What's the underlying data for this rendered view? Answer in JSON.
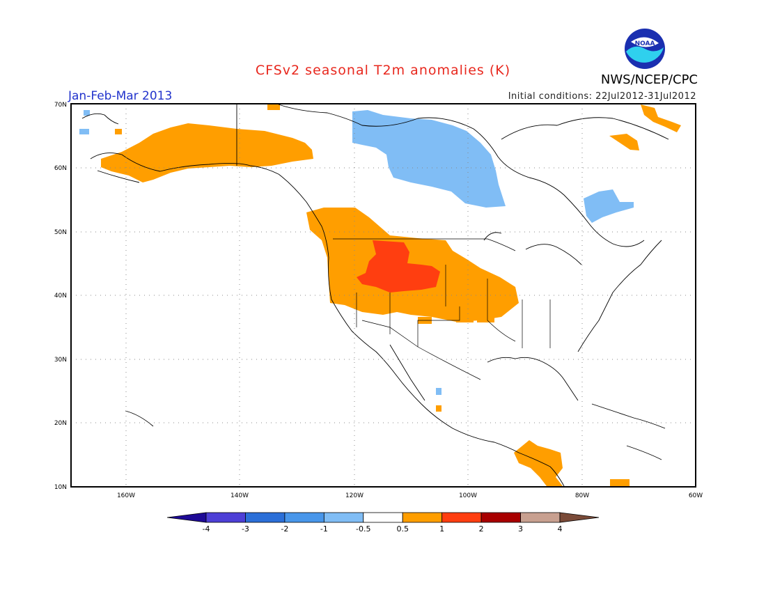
{
  "header": {
    "title": "CFSv2 seasonal T2m anomalies (K)",
    "season": "Jan-Feb-Mar 2013",
    "initial_conditions": "Initial conditions: 22Jul2012-31Jul2012",
    "agency": "NWS/NCEP/CPC",
    "logo_text": "NOAA"
  },
  "axes": {
    "lat_ticks": [
      "70N",
      "60N",
      "50N",
      "40N",
      "30N",
      "20N",
      "10N"
    ],
    "lon_ticks": [
      "160W",
      "140W",
      "120W",
      "100W",
      "80W",
      "60W"
    ]
  },
  "colorbar": {
    "labels": [
      "-4",
      "-3",
      "-2",
      "-1",
      "-0.5",
      "0.5",
      "1",
      "2",
      "3",
      "4"
    ],
    "colors": [
      "#1e0a96",
      "#4d3fd6",
      "#2b6fd8",
      "#4896ea",
      "#80bdf5",
      "#ffffff",
      "#ff9e00",
      "#ff3e10",
      "#a80000",
      "#c8a090",
      "#7a4a38"
    ]
  },
  "colors": {
    "plus_half": "#ff9e00",
    "plus_one": "#ff3e10",
    "minus_half": "#80bdf5",
    "title": "#e8281e",
    "season": "#2233cc"
  }
}
